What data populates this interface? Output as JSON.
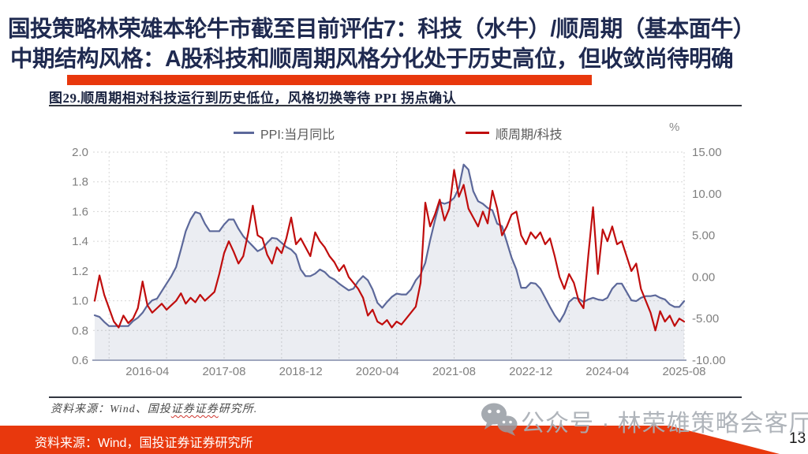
{
  "page": {
    "title_line1": "国投策略林荣雄本轮牛市截至目前评估7：科技（水牛）/顺周期（基本面牛）",
    "title_line2": "中期结构风格：A股科技和顺周期风格分化处于历史高位，但收敛尚待明确",
    "footer_source": "资料来源：Wind，国投证券证券研究所",
    "watermark": "公众号 · 林荣雄策略会客厅",
    "page_number": "13"
  },
  "figure": {
    "title": "图29.顺周期相对科技运行到历史低位，风格切换等待 PPI 拐点确认",
    "source_prefix": "资料来源：Wind、国投",
    "source_wavy": "证券证券",
    "source_suffix": "研究所.",
    "unit_label": "%"
  },
  "colors": {
    "headline_navy": "#1f2a50",
    "accent_red": "#e8380d",
    "ppi_line": "#5c689a",
    "ratio_line": "#c00d0d",
    "gridline": "#d6d6d6",
    "axis_text": "#7f7f7f",
    "axis_line": "#9fa6bd",
    "area_fill": "rgba(92,104,150,0.12)"
  },
  "chart_data": {
    "type": "line",
    "title": "图29.顺周期相对科技运行到历史低位，风格切换等待 PPI 拐点确认",
    "x_start": "2015-05",
    "x_tick_labels": [
      "2016-04",
      "2017-08",
      "2018-12",
      "2020-04",
      "2021-08",
      "2022-12",
      "2024-04",
      "2025-08"
    ],
    "left_axis": {
      "min": 0.6,
      "max": 2.0,
      "tick_labels": [
        "2.0",
        "1.8",
        "1.6",
        "1.4",
        "1.2",
        "1.0",
        "0.8",
        "0.6"
      ],
      "tick_values": [
        2.0,
        1.8,
        1.6,
        1.4,
        1.2,
        1.0,
        0.8,
        0.6
      ]
    },
    "right_axis": {
      "min": -10,
      "max": 15,
      "tick_labels": [
        "15.00",
        "10.00",
        "5.00",
        "0.00",
        "-5.00",
        "-10.00"
      ],
      "tick_values": [
        15,
        10,
        5,
        0,
        -5,
        -10
      ]
    },
    "grid": {
      "horizontal": true,
      "vertical_yearly_month": 8
    },
    "legend_position": "top",
    "series": [
      {
        "name": "PPI:当月同比",
        "axis": "right",
        "color": "#5c689a",
        "area": true,
        "values": [
          -4.6,
          -4.8,
          -5.4,
          -5.9,
          -5.9,
          -5.9,
          -5.9,
          -5.9,
          -5.3,
          -4.9,
          -4.3,
          -3.4,
          -2.8,
          -2.6,
          -1.7,
          -0.8,
          0.1,
          1.2,
          3.3,
          5.5,
          6.9,
          7.8,
          7.6,
          6.4,
          5.5,
          5.5,
          5.5,
          6.3,
          6.9,
          6.9,
          5.8,
          4.9,
          4.3,
          3.7,
          3.1,
          3.4,
          4.1,
          4.7,
          4.6,
          4.1,
          3.6,
          3.3,
          2.7,
          0.9,
          0.1,
          0.1,
          0.4,
          0.9,
          0.6,
          0.0,
          -0.3,
          -0.8,
          -1.2,
          -1.6,
          -1.4,
          -0.5,
          0.1,
          -0.4,
          -1.5,
          -3.1,
          -3.7,
          -3.0,
          -2.4,
          -2.0,
          -2.1,
          -2.1,
          -1.5,
          -0.4,
          0.3,
          1.7,
          4.4,
          6.8,
          9.0,
          8.8,
          9.0,
          9.5,
          10.7,
          13.5,
          12.9,
          10.3,
          9.1,
          8.8,
          8.3,
          8.0,
          6.4,
          6.1,
          4.2,
          2.3,
          0.9,
          -1.3,
          -1.3,
          -0.7,
          -0.8,
          -1.4,
          -2.5,
          -3.6,
          -4.6,
          -5.4,
          -4.4,
          -3.0,
          -2.5,
          -2.6,
          -3.0,
          -2.7,
          -2.5,
          -2.7,
          -2.8,
          -2.5,
          -1.4,
          -0.8,
          -0.8,
          -1.8,
          -2.8,
          -2.9,
          -2.5,
          -2.3,
          -2.3,
          -2.2,
          -2.5,
          -2.7,
          -3.3,
          -3.6,
          -3.6,
          -2.9
        ]
      },
      {
        "name": "顺周期/科技",
        "axis": "left",
        "color": "#c00d0d",
        "area": false,
        "values": [
          1.0,
          1.17,
          1.04,
          0.95,
          0.86,
          0.82,
          0.9,
          0.85,
          0.88,
          0.95,
          1.13,
          0.97,
          0.92,
          0.95,
          0.98,
          0.94,
          0.97,
          1.0,
          1.05,
          0.98,
          1.02,
          0.99,
          1.04,
          1.0,
          1.03,
          1.06,
          1.18,
          1.32,
          1.4,
          1.33,
          1.25,
          1.3,
          1.45,
          1.64,
          1.44,
          1.42,
          1.31,
          1.25,
          1.36,
          1.32,
          1.42,
          1.56,
          1.38,
          1.42,
          1.36,
          1.3,
          1.46,
          1.4,
          1.36,
          1.3,
          1.26,
          1.2,
          1.24,
          1.16,
          1.12,
          1.08,
          1.02,
          0.9,
          0.94,
          0.86,
          0.84,
          0.87,
          0.82,
          0.86,
          0.84,
          0.88,
          0.92,
          0.96,
          1.12,
          1.66,
          1.5,
          1.58,
          1.68,
          1.54,
          1.62,
          1.88,
          1.7,
          1.78,
          1.62,
          1.56,
          1.5,
          1.6,
          1.52,
          1.74,
          1.62,
          1.44,
          1.5,
          1.58,
          1.6,
          1.44,
          1.38,
          1.46,
          1.42,
          1.46,
          1.38,
          1.42,
          1.3,
          1.16,
          1.08,
          1.18,
          1.12,
          1.0,
          0.95,
          1.3,
          1.63,
          1.18,
          1.48,
          1.4,
          1.5,
          1.38,
          1.4,
          1.3,
          1.2,
          1.25,
          1.08,
          1.0,
          0.92,
          0.8,
          0.93,
          0.86,
          0.9,
          0.83,
          0.88,
          0.86
        ]
      }
    ]
  }
}
